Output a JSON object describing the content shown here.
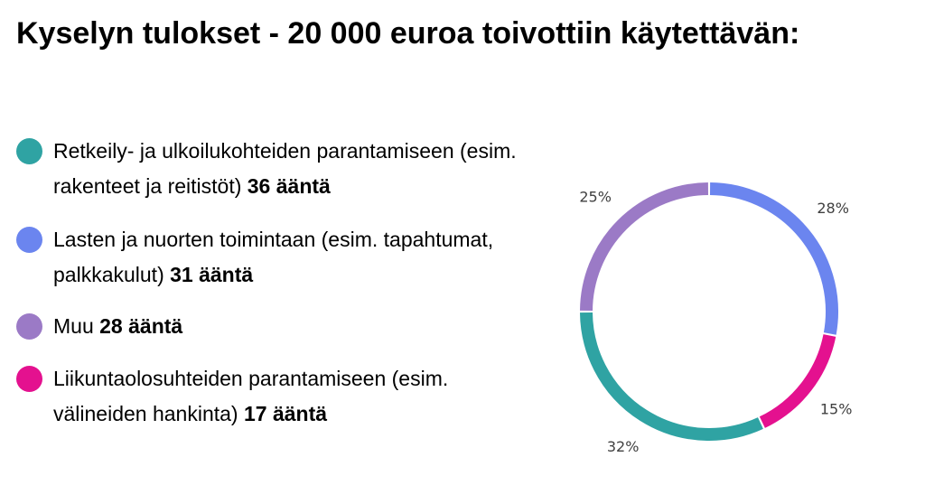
{
  "title": "Kyselyn tulokset - 20 000 euroa toivottiin käytettävän:",
  "legend": [
    {
      "label": "Retkeily- ja ulkoilukohteiden parantamiseen (esim. rakenteet ja reitistöt)",
      "count": "36 ääntä",
      "color": "#2fa3a3"
    },
    {
      "label": "Lasten ja nuorten toimintaan (esim. tapahtumat, palkkakulut)",
      "count": "31 ääntä",
      "color": "#6b85ef"
    },
    {
      "label": "Muu",
      "count": "28 ääntä",
      "color": "#9b7ac6"
    },
    {
      "label": "Liikuntaolosuhteiden parantamiseen (esim. välineiden hankinta)",
      "count": "17 ääntä",
      "color": "#e4118f"
    }
  ],
  "chart_data": {
    "type": "pie",
    "donut": true,
    "slices": [
      {
        "value": 28,
        "label": "28%",
        "color": "#6b85ef"
      },
      {
        "value": 15,
        "label": "15%",
        "color": "#e4118f"
      },
      {
        "value": 32,
        "label": "32%",
        "color": "#2fa3a3"
      },
      {
        "value": 25,
        "label": "25%",
        "color": "#9b7ac6"
      }
    ],
    "start": "top",
    "direction": "clockwise"
  }
}
